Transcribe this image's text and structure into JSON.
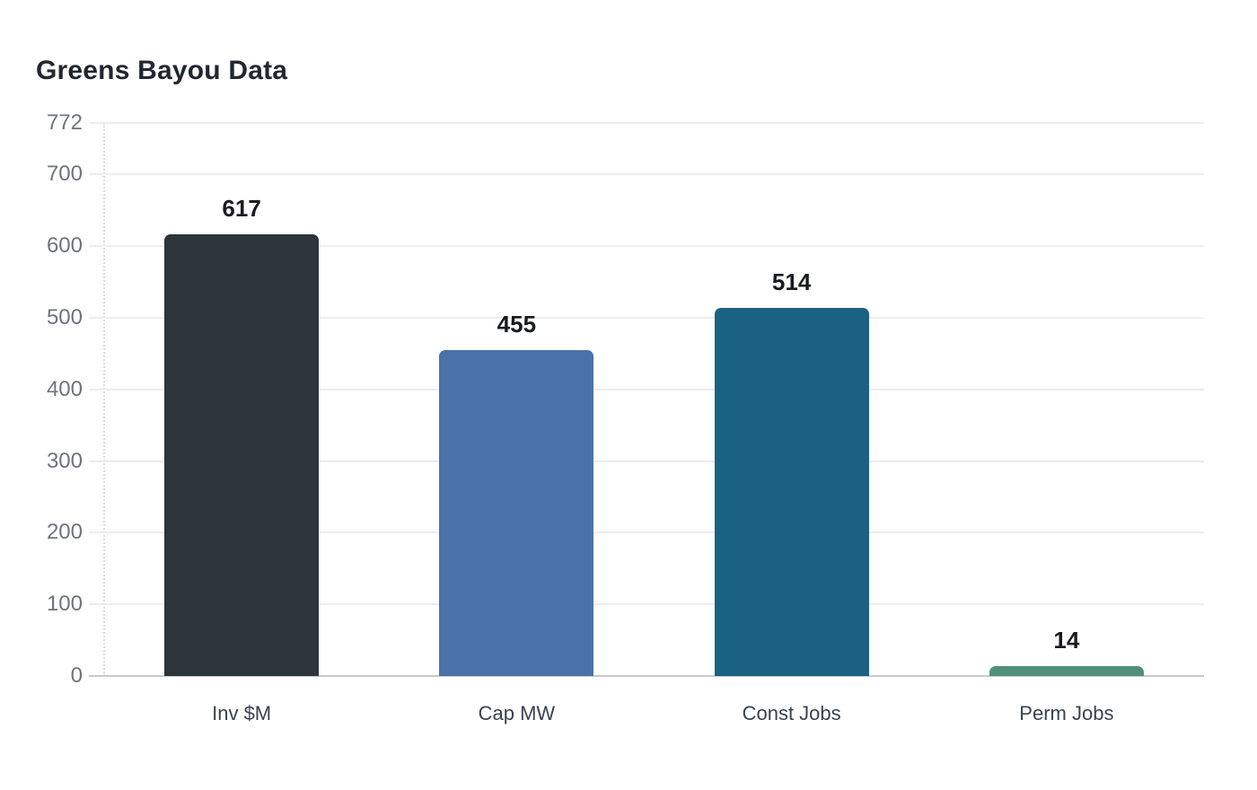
{
  "page": {
    "background": "#ffffff"
  },
  "chart_data": {
    "type": "bar",
    "title": "Greens Bayou Data",
    "categories": [
      "Inv $M",
      "Cap MW",
      "Const Jobs",
      "Perm Jobs"
    ],
    "values": [
      617,
      455,
      514,
      14
    ],
    "bar_colors": [
      "#2b353a",
      "#4b72a9",
      "#1b6183",
      "#518f7d"
    ],
    "xlabel": "",
    "ylabel": "",
    "ylim": [
      0,
      772
    ],
    "yticks": [
      0,
      100,
      200,
      300,
      400,
      500,
      600,
      700,
      772
    ],
    "grid": true,
    "legend": false,
    "colors": {
      "title": "#212730",
      "tick_label": "#6e747e",
      "category_label": "#39424e",
      "value_label": "#181c20",
      "gridline": "#ededee",
      "axis_line": "#d9dce0",
      "baseline": "#c6cacd"
    }
  }
}
